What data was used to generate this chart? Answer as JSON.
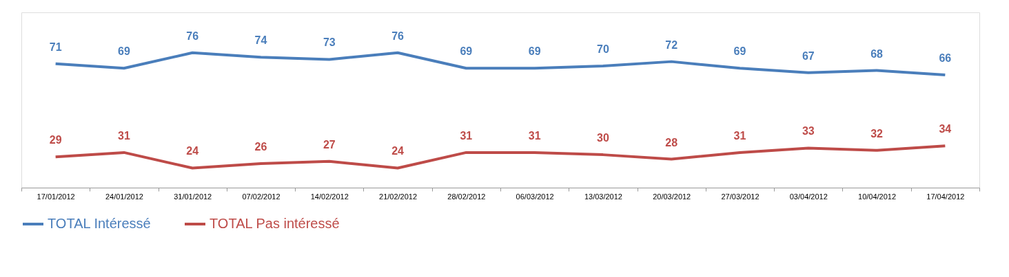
{
  "chart_data": {
    "type": "line",
    "categories": [
      "17/01/2012",
      "24/01/2012",
      "31/01/2012",
      "07/02/2012",
      "14/02/2012",
      "21/02/2012",
      "28/02/2012",
      "06/03/2012",
      "13/03/2012",
      "20/03/2012",
      "27/03/2012",
      "03/04/2012",
      "10/04/2012",
      "17/04/2012"
    ],
    "series": [
      {
        "name": "TOTAL Intéressé",
        "color": "#4a7ebb",
        "values": [
          71,
          69,
          76,
          74,
          73,
          76,
          69,
          69,
          70,
          72,
          69,
          67,
          68,
          66
        ]
      },
      {
        "name": "TOTAL Pas intéressé",
        "color": "#be4b48",
        "values": [
          29,
          31,
          24,
          26,
          27,
          24,
          31,
          31,
          30,
          28,
          31,
          33,
          32,
          34
        ]
      }
    ],
    "tick_labels": "x",
    "data_labels": true,
    "legend": "bottom",
    "grid": false,
    "marker": "none",
    "line_style": "solid"
  }
}
